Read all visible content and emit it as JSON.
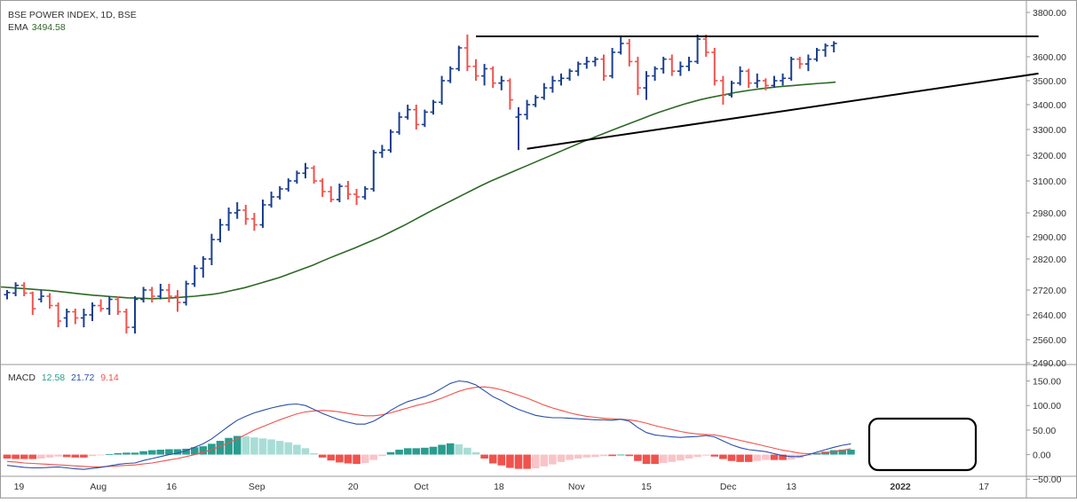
{
  "chart_data": [
    {
      "type": "ohlc",
      "symbol_label": "BSE POWER INDEX, 1D, BSE",
      "ema_label": "EMA",
      "ema_value": "3494.58",
      "ylim": [
        2470,
        3860
      ],
      "y_ticks": [
        "3800.00",
        "3600.00",
        "3500.00",
        "3400.00",
        "3300.00",
        "3200.00",
        "3100.00",
        "2980.00",
        "2900.00",
        "2820.00",
        "2720.00",
        "2640.00",
        "2560.00",
        "2490.00"
      ],
      "x_ticks": [
        "19",
        "Aug",
        "16",
        "Sep",
        "20",
        "Oct",
        "18",
        "Nov",
        "15",
        "Dec",
        "13",
        "2022",
        "17"
      ],
      "colors": {
        "up": "#1a3f8f",
        "down": "#f0524d",
        "ema": "#2d6a25",
        "trendline": "#000000"
      },
      "series": [
        {
          "name": "EMA",
          "values": [
            2730,
            2728,
            2726,
            2724,
            2722,
            2720,
            2718,
            2715,
            2712,
            2709,
            2706,
            2703,
            2701,
            2699,
            2697,
            2695,
            2694,
            2693,
            2692,
            2693,
            2694,
            2696,
            2698,
            2700,
            2703,
            2706,
            2710,
            2716,
            2722,
            2728,
            2736,
            2744,
            2752,
            2760,
            2770,
            2780,
            2790,
            2800,
            2812,
            2824,
            2836,
            2848,
            2860,
            2873,
            2886,
            2899,
            2913,
            2927,
            2941,
            2956,
            2971,
            2987,
            3003,
            3019,
            3035,
            3051,
            3067,
            3083,
            3098,
            3112,
            3126,
            3140,
            3154,
            3168,
            3182,
            3196,
            3210,
            3224,
            3238,
            3252,
            3265,
            3278,
            3291,
            3304,
            3317,
            3330,
            3343,
            3356,
            3369,
            3380,
            3391,
            3402,
            3412,
            3421,
            3429,
            3436,
            3443,
            3450,
            3456,
            3461,
            3466,
            3470,
            3474,
            3477,
            3480,
            3483,
            3486,
            3489,
            3491,
            3494
          ]
        }
      ],
      "bars": [
        {
          "o": 2705,
          "h": 2720,
          "l": 2690,
          "c": 2712
        },
        {
          "o": 2710,
          "h": 2745,
          "l": 2700,
          "c": 2735
        },
        {
          "o": 2735,
          "h": 2745,
          "l": 2700,
          "c": 2710
        },
        {
          "o": 2710,
          "h": 2715,
          "l": 2640,
          "c": 2660
        },
        {
          "o": 2690,
          "h": 2720,
          "l": 2680,
          "c": 2700
        },
        {
          "o": 2700,
          "h": 2710,
          "l": 2660,
          "c": 2670
        },
        {
          "o": 2670,
          "h": 2680,
          "l": 2600,
          "c": 2620
        },
        {
          "o": 2630,
          "h": 2660,
          "l": 2600,
          "c": 2650
        },
        {
          "o": 2650,
          "h": 2660,
          "l": 2610,
          "c": 2630
        },
        {
          "o": 2630,
          "h": 2660,
          "l": 2600,
          "c": 2640
        },
        {
          "o": 2640,
          "h": 2680,
          "l": 2620,
          "c": 2670
        },
        {
          "o": 2670,
          "h": 2690,
          "l": 2650,
          "c": 2660
        },
        {
          "o": 2660,
          "h": 2700,
          "l": 2640,
          "c": 2690
        },
        {
          "o": 2690,
          "h": 2700,
          "l": 2640,
          "c": 2650
        },
        {
          "o": 2650,
          "h": 2660,
          "l": 2580,
          "c": 2600
        },
        {
          "o": 2600,
          "h": 2700,
          "l": 2580,
          "c": 2690
        },
        {
          "o": 2690,
          "h": 2730,
          "l": 2680,
          "c": 2720
        },
        {
          "o": 2720,
          "h": 2730,
          "l": 2680,
          "c": 2700
        },
        {
          "o": 2700,
          "h": 2740,
          "l": 2690,
          "c": 2720
        },
        {
          "o": 2720,
          "h": 2740,
          "l": 2680,
          "c": 2700
        },
        {
          "o": 2700,
          "h": 2720,
          "l": 2650,
          "c": 2680
        },
        {
          "o": 2680,
          "h": 2750,
          "l": 2670,
          "c": 2740
        },
        {
          "o": 2740,
          "h": 2800,
          "l": 2730,
          "c": 2790
        },
        {
          "o": 2790,
          "h": 2830,
          "l": 2760,
          "c": 2820
        },
        {
          "o": 2820,
          "h": 2910,
          "l": 2800,
          "c": 2890
        },
        {
          "o": 2890,
          "h": 2960,
          "l": 2880,
          "c": 2940
        },
        {
          "o": 2940,
          "h": 3000,
          "l": 2920,
          "c": 2980
        },
        {
          "o": 2980,
          "h": 3020,
          "l": 2960,
          "c": 2990
        },
        {
          "o": 2990,
          "h": 3010,
          "l": 2940,
          "c": 2960
        },
        {
          "o": 2960,
          "h": 2980,
          "l": 2920,
          "c": 2940
        },
        {
          "o": 2940,
          "h": 3030,
          "l": 2930,
          "c": 3010
        },
        {
          "o": 3010,
          "h": 3060,
          "l": 3000,
          "c": 3040
        },
        {
          "o": 3040,
          "h": 3080,
          "l": 3030,
          "c": 3070
        },
        {
          "o": 3070,
          "h": 3110,
          "l": 3060,
          "c": 3100
        },
        {
          "o": 3100,
          "h": 3140,
          "l": 3090,
          "c": 3130
        },
        {
          "o": 3130,
          "h": 3170,
          "l": 3110,
          "c": 3150
        },
        {
          "o": 3150,
          "h": 3160,
          "l": 3090,
          "c": 3100
        },
        {
          "o": 3100,
          "h": 3110,
          "l": 3040,
          "c": 3060
        },
        {
          "o": 3060,
          "h": 3080,
          "l": 3020,
          "c": 3030
        },
        {
          "o": 3030,
          "h": 3090,
          "l": 3020,
          "c": 3080
        },
        {
          "o": 3080,
          "h": 3100,
          "l": 3030,
          "c": 3050
        },
        {
          "o": 3050,
          "h": 3070,
          "l": 3010,
          "c": 3040
        },
        {
          "o": 3040,
          "h": 3080,
          "l": 3030,
          "c": 3070
        },
        {
          "o": 3070,
          "h": 3220,
          "l": 3060,
          "c": 3210
        },
        {
          "o": 3210,
          "h": 3240,
          "l": 3190,
          "c": 3220
        },
        {
          "o": 3220,
          "h": 3300,
          "l": 3210,
          "c": 3290
        },
        {
          "o": 3290,
          "h": 3370,
          "l": 3280,
          "c": 3350
        },
        {
          "o": 3350,
          "h": 3400,
          "l": 3340,
          "c": 3380
        },
        {
          "o": 3380,
          "h": 3400,
          "l": 3300,
          "c": 3320
        },
        {
          "o": 3320,
          "h": 3380,
          "l": 3310,
          "c": 3370
        },
        {
          "o": 3370,
          "h": 3420,
          "l": 3360,
          "c": 3410
        },
        {
          "o": 3410,
          "h": 3520,
          "l": 3400,
          "c": 3500
        },
        {
          "o": 3500,
          "h": 3560,
          "l": 3490,
          "c": 3550
        },
        {
          "o": 3550,
          "h": 3650,
          "l": 3540,
          "c": 3640
        },
        {
          "o": 3640,
          "h": 3700,
          "l": 3540,
          "c": 3560
        },
        {
          "o": 3560,
          "h": 3590,
          "l": 3500,
          "c": 3520
        },
        {
          "o": 3520,
          "h": 3570,
          "l": 3480,
          "c": 3550
        },
        {
          "o": 3550,
          "h": 3560,
          "l": 3470,
          "c": 3490
        },
        {
          "o": 3490,
          "h": 3520,
          "l": 3460,
          "c": 3500
        },
        {
          "o": 3500,
          "h": 3510,
          "l": 3380,
          "c": 3420
        },
        {
          "o": 3350,
          "h": 3390,
          "l": 3220,
          "c": 3360
        },
        {
          "o": 3360,
          "h": 3420,
          "l": 3340,
          "c": 3400
        },
        {
          "o": 3400,
          "h": 3440,
          "l": 3390,
          "c": 3430
        },
        {
          "o": 3430,
          "h": 3490,
          "l": 3420,
          "c": 3470
        },
        {
          "o": 3470,
          "h": 3520,
          "l": 3450,
          "c": 3500
        },
        {
          "o": 3500,
          "h": 3530,
          "l": 3480,
          "c": 3510
        },
        {
          "o": 3510,
          "h": 3550,
          "l": 3500,
          "c": 3540
        },
        {
          "o": 3540,
          "h": 3580,
          "l": 3520,
          "c": 3570
        },
        {
          "o": 3570,
          "h": 3600,
          "l": 3550,
          "c": 3580
        },
        {
          "o": 3580,
          "h": 3600,
          "l": 3560,
          "c": 3590
        },
        {
          "o": 3590,
          "h": 3610,
          "l": 3500,
          "c": 3520
        },
        {
          "o": 3520,
          "h": 3640,
          "l": 3510,
          "c": 3620
        },
        {
          "o": 3620,
          "h": 3690,
          "l": 3610,
          "c": 3660
        },
        {
          "o": 3660,
          "h": 3680,
          "l": 3560,
          "c": 3580
        },
        {
          "o": 3580,
          "h": 3600,
          "l": 3440,
          "c": 3470
        },
        {
          "o": 3470,
          "h": 3540,
          "l": 3420,
          "c": 3520
        },
        {
          "o": 3520,
          "h": 3560,
          "l": 3500,
          "c": 3550
        },
        {
          "o": 3550,
          "h": 3600,
          "l": 3530,
          "c": 3590
        },
        {
          "o": 3590,
          "h": 3610,
          "l": 3520,
          "c": 3540
        },
        {
          "o": 3540,
          "h": 3580,
          "l": 3520,
          "c": 3560
        },
        {
          "o": 3560,
          "h": 3600,
          "l": 3540,
          "c": 3580
        },
        {
          "o": 3580,
          "h": 3700,
          "l": 3570,
          "c": 3680
        },
        {
          "o": 3680,
          "h": 3700,
          "l": 3600,
          "c": 3620
        },
        {
          "o": 3620,
          "h": 3640,
          "l": 3480,
          "c": 3500
        },
        {
          "o": 3500,
          "h": 3520,
          "l": 3400,
          "c": 3440
        },
        {
          "o": 3440,
          "h": 3500,
          "l": 3430,
          "c": 3490
        },
        {
          "o": 3490,
          "h": 3560,
          "l": 3480,
          "c": 3540
        },
        {
          "o": 3540,
          "h": 3550,
          "l": 3470,
          "c": 3490
        },
        {
          "o": 3490,
          "h": 3530,
          "l": 3470,
          "c": 3500
        },
        {
          "o": 3500,
          "h": 3510,
          "l": 3460,
          "c": 3480
        },
        {
          "o": 3480,
          "h": 3520,
          "l": 3470,
          "c": 3500
        },
        {
          "o": 3500,
          "h": 3530,
          "l": 3480,
          "c": 3510
        },
        {
          "o": 3510,
          "h": 3600,
          "l": 3500,
          "c": 3590
        },
        {
          "o": 3590,
          "h": 3600,
          "l": 3550,
          "c": 3570
        },
        {
          "o": 3570,
          "h": 3610,
          "l": 3540,
          "c": 3590
        },
        {
          "o": 3590,
          "h": 3640,
          "l": 3580,
          "c": 3630
        },
        {
          "o": 3630,
          "h": 3660,
          "l": 3600,
          "c": 3650
        },
        {
          "o": 3650,
          "h": 3670,
          "l": 3620,
          "c": 3660
        }
      ],
      "trendlines": [
        {
          "name": "resistance",
          "x": [
            55,
            121
          ],
          "y": [
            3692,
            3692
          ]
        },
        {
          "name": "support",
          "x": [
            61,
            121
          ],
          "y": [
            3225,
            3530
          ]
        }
      ]
    },
    {
      "type": "macd",
      "label": "MACD",
      "values_text": [
        "12.58",
        "21.72",
        "9.14"
      ],
      "ylim": [
        -55,
        160
      ],
      "y_ticks": [
        "150.00",
        "100.00",
        "50.00",
        "0.00",
        "−50.00"
      ],
      "colors": {
        "macd": "#2a4fa8",
        "signal": "#f0524d",
        "hist_up_strong": "#2a9d8f",
        "hist_up_weak": "#a8ddd6",
        "hist_down_strong": "#f0524d",
        "hist_down_weak": "#f9c4c8"
      },
      "series": [
        {
          "name": "MACD",
          "values": [
            -22,
            -24,
            -26,
            -27,
            -27,
            -26,
            -25,
            -27,
            -29,
            -30,
            -28,
            -26,
            -23,
            -20,
            -18,
            -17,
            -12,
            -8,
            -4,
            0,
            3,
            8,
            15,
            22,
            32,
            45,
            58,
            70,
            78,
            85,
            90,
            95,
            99,
            102,
            103,
            100,
            92,
            84,
            77,
            71,
            66,
            62,
            62,
            68,
            78,
            90,
            100,
            108,
            113,
            118,
            125,
            135,
            145,
            150,
            148,
            142,
            130,
            118,
            110,
            100,
            92,
            86,
            80,
            77,
            75,
            75,
            74,
            73,
            72,
            71,
            71,
            70,
            72,
            68,
            55,
            45,
            40,
            38,
            36,
            35,
            36,
            37,
            39,
            36,
            28,
            20,
            14,
            10,
            8,
            6,
            2,
            -2,
            -4,
            -4,
            0,
            5,
            10,
            15,
            19,
            22
          ]
        },
        {
          "name": "Signal",
          "values": [
            -14,
            -15,
            -17,
            -18,
            -19,
            -20,
            -21,
            -22,
            -23,
            -24,
            -25,
            -25,
            -24,
            -23,
            -22,
            -21,
            -19,
            -17,
            -14,
            -11,
            -8,
            -4,
            0,
            5,
            10,
            17,
            24,
            32,
            41,
            50,
            57,
            64,
            71,
            77,
            83,
            87,
            89,
            90,
            89,
            87,
            84,
            81,
            79,
            79,
            81,
            85,
            90,
            95,
            100,
            104,
            109,
            115,
            122,
            129,
            134,
            137,
            138,
            136,
            132,
            127,
            121,
            115,
            108,
            101,
            95,
            90,
            85,
            81,
            78,
            76,
            74,
            73,
            72,
            71,
            68,
            64,
            59,
            55,
            51,
            47,
            44,
            42,
            41,
            40,
            37,
            33,
            29,
            25,
            21,
            17,
            13,
            9,
            6,
            3,
            2,
            2,
            4,
            6,
            9,
            12
          ]
        },
        {
          "name": "Histogram",
          "values": [
            -8,
            -9,
            -9,
            -9,
            -8,
            -6,
            -4,
            -5,
            -6,
            -6,
            -3,
            -1,
            1,
            3,
            4,
            4,
            7,
            9,
            10,
            11,
            11,
            12,
            15,
            17,
            22,
            28,
            34,
            38,
            37,
            35,
            33,
            31,
            28,
            25,
            20,
            13,
            3,
            -6,
            -12,
            -16,
            -18,
            -19,
            -17,
            -11,
            -3,
            5,
            10,
            13,
            13,
            14,
            16,
            20,
            23,
            21,
            14,
            5,
            -8,
            -18,
            -22,
            -27,
            -29,
            -29,
            -28,
            -24,
            -20,
            -15,
            -11,
            -8,
            -6,
            -5,
            -3,
            -3,
            0,
            -3,
            -13,
            -19,
            -19,
            -17,
            -15,
            -12,
            -8,
            -5,
            -2,
            -4,
            -9,
            -13,
            -15,
            -15,
            -13,
            -11,
            -11,
            -11,
            -10,
            -7,
            -2,
            3,
            6,
            9,
            10,
            10
          ]
        }
      ]
    }
  ]
}
